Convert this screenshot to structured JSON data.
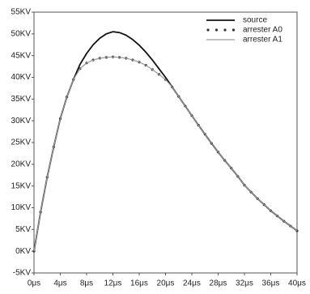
{
  "chart_data": {
    "type": "line",
    "x": [
      0,
      1,
      2,
      3,
      4,
      5,
      6,
      7,
      8,
      9,
      10,
      11,
      12,
      13,
      14,
      15,
      16,
      17,
      18,
      19,
      20,
      21,
      22,
      23,
      24,
      25,
      26,
      27,
      28,
      29,
      30,
      31,
      32,
      33,
      34,
      35,
      36,
      37,
      38,
      39,
      40
    ],
    "series": [
      {
        "name": "source",
        "color": "#111111",
        "line_width": 1.8,
        "marker": "none",
        "values": [
          0,
          9,
          17,
          24,
          30.5,
          35.5,
          39.5,
          43,
          45.5,
          47.5,
          49,
          50,
          50.5,
          50.3,
          49.7,
          48.7,
          47.4,
          45.8,
          44,
          42,
          40,
          37.8,
          35.6,
          33.4,
          31.2,
          29,
          26.9,
          24.8,
          22.8,
          20.9,
          19.1,
          17.2,
          15.2,
          13.6,
          12.1,
          10.7,
          9.3,
          8.1,
          6.9,
          5.8,
          4.7
        ]
      },
      {
        "name": "arrester A0",
        "color": "#333333",
        "line_width": 0,
        "marker": "dot",
        "values": [
          0,
          9,
          17,
          24,
          30.5,
          35.5,
          39.5,
          42,
          43.3,
          44,
          44.4,
          44.6,
          44.7,
          44.6,
          44.4,
          44,
          43.5,
          42.8,
          41.8,
          40.7,
          39.5,
          37.8,
          35.6,
          33.4,
          31.2,
          29,
          26.9,
          24.8,
          22.8,
          20.9,
          19.1,
          17.2,
          15.2,
          13.6,
          12.1,
          10.7,
          9.3,
          8.1,
          6.9,
          5.8,
          4.7
        ]
      },
      {
        "name": "arrester A1",
        "color": "#9a9a9a",
        "line_width": 1.2,
        "marker": "none",
        "values": [
          0,
          9,
          17,
          24,
          30.5,
          35.5,
          39.5,
          42,
          43.3,
          44,
          44.4,
          44.6,
          44.7,
          44.6,
          44.4,
          44,
          43.5,
          42.8,
          41.8,
          40.7,
          39.5,
          37.8,
          35.6,
          33.4,
          31.2,
          29,
          26.9,
          24.8,
          22.8,
          20.9,
          19.1,
          17.2,
          15.2,
          13.6,
          12.1,
          10.7,
          9.3,
          8.1,
          6.9,
          5.8,
          4.7
        ]
      }
    ],
    "xlim": [
      0,
      40
    ],
    "xticks": [
      {
        "value": 0,
        "label": "0μs"
      },
      {
        "value": 4,
        "label": "4μs"
      },
      {
        "value": 8,
        "label": "8μs"
      },
      {
        "value": 12,
        "label": "12μs"
      },
      {
        "value": 16,
        "label": "16μs"
      },
      {
        "value": 20,
        "label": "20μs"
      },
      {
        "value": 24,
        "label": "24μs"
      },
      {
        "value": 28,
        "label": "28μs"
      },
      {
        "value": 32,
        "label": "32μs"
      },
      {
        "value": 36,
        "label": "36μs"
      },
      {
        "value": 40,
        "label": "40μs"
      }
    ],
    "ylim": [
      -5,
      55
    ],
    "yticks": [
      {
        "value": -5,
        "label": "-5KV"
      },
      {
        "value": 0,
        "label": "0KV"
      },
      {
        "value": 5,
        "label": "5KV"
      },
      {
        "value": 10,
        "label": "10KV"
      },
      {
        "value": 15,
        "label": "15KV"
      },
      {
        "value": 20,
        "label": "20KV"
      },
      {
        "value": 25,
        "label": "25KV"
      },
      {
        "value": 30,
        "label": "30KV"
      },
      {
        "value": 35,
        "label": "35KV"
      },
      {
        "value": 40,
        "label": "40KV"
      },
      {
        "value": 45,
        "label": "45KV"
      },
      {
        "value": 50,
        "label": "50KV"
      },
      {
        "value": 55,
        "label": "55KV"
      }
    ],
    "grid": false,
    "legend": "upper right"
  }
}
